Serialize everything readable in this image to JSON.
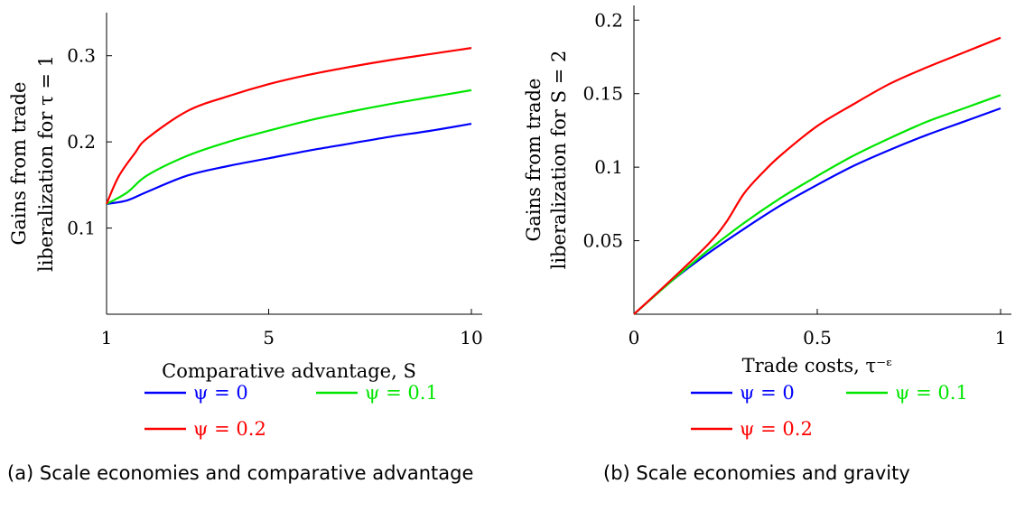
{
  "panels": [
    {
      "caption": "(a) Scale economies and comparative advantage",
      "chart_data": {
        "type": "line",
        "xlabel": "Comparative advantage, S",
        "ylabel_line1": "Gains from trade",
        "ylabel_line2": "liberalization for τ = 1",
        "xlim": [
          1,
          10
        ],
        "ylim": [
          0,
          0.35
        ],
        "xticks": [
          1,
          5,
          10
        ],
        "xtick_labels": [
          "1",
          "5",
          "10"
        ],
        "yticks": [
          0.1,
          0.2,
          0.3
        ],
        "ytick_labels": [
          "0.1",
          "0.2",
          "0.3"
        ],
        "grid": false,
        "legend_position": "bottom",
        "series": [
          {
            "name": "ψ = 0",
            "color": "#0000ff",
            "x": [
              1,
              1.5,
              2,
              3,
              4,
              5,
              6,
              7,
              8,
              9,
              10
            ],
            "y": [
              0.128,
              0.132,
              0.142,
              0.161,
              0.172,
              0.181,
              0.19,
              0.198,
              0.206,
              0.213,
              0.221
            ]
          },
          {
            "name": "ψ = 0.1",
            "color": "#00e600",
            "x": [
              1,
              1.5,
              2,
              3,
              4,
              5,
              6,
              7,
              8,
              9,
              10
            ],
            "y": [
              0.128,
              0.141,
              0.161,
              0.184,
              0.2,
              0.213,
              0.225,
              0.235,
              0.244,
              0.252,
              0.26
            ]
          },
          {
            "name": "ψ = 0.2",
            "color": "#ff0000",
            "x": [
              1,
              1.3,
              1.7,
              2,
              3,
              4,
              5,
              6,
              7,
              8,
              9,
              10
            ],
            "y": [
              0.128,
              0.16,
              0.187,
              0.204,
              0.236,
              0.253,
              0.267,
              0.278,
              0.287,
              0.295,
              0.302,
              0.309
            ]
          }
        ]
      }
    },
    {
      "caption": "(b) Scale economies and gravity",
      "chart_data": {
        "type": "line",
        "xlabel": "Trade costs, τ⁻ᵋ",
        "ylabel_line1": "Gains from trade",
        "ylabel_line2": "liberalization for S = 2",
        "xlim": [
          0,
          1
        ],
        "ylim": [
          0,
          0.21
        ],
        "xticks": [
          0,
          0.5,
          1
        ],
        "xtick_labels": [
          "0",
          "0.5",
          "1"
        ],
        "yticks": [
          0.05,
          0.1,
          0.15,
          0.2
        ],
        "ytick_labels": [
          "0.05",
          "0.1",
          "0.15",
          "0.2"
        ],
        "grid": false,
        "legend_position": "bottom",
        "series": [
          {
            "name": "ψ = 0",
            "color": "#0000ff",
            "x": [
              0,
              0.1,
              0.2,
              0.3,
              0.4,
              0.5,
              0.6,
              0.7,
              0.8,
              0.9,
              1
            ],
            "y": [
              0,
              0.022,
              0.041,
              0.058,
              0.074,
              0.088,
              0.101,
              0.112,
              0.122,
              0.131,
              0.14
            ]
          },
          {
            "name": "ψ = 0.1",
            "color": "#00e600",
            "x": [
              0,
              0.1,
              0.2,
              0.3,
              0.4,
              0.5,
              0.6,
              0.7,
              0.8,
              0.9,
              1
            ],
            "y": [
              0,
              0.022,
              0.043,
              0.062,
              0.079,
              0.094,
              0.108,
              0.12,
              0.131,
              0.14,
              0.149
            ]
          },
          {
            "name": "ψ = 0.2",
            "color": "#ff0000",
            "x": [
              0,
              0.1,
              0.2,
              0.25,
              0.3,
              0.35,
              0.4,
              0.5,
              0.6,
              0.7,
              0.8,
              0.9,
              1
            ],
            "y": [
              0,
              0.023,
              0.047,
              0.062,
              0.082,
              0.096,
              0.108,
              0.128,
              0.143,
              0.157,
              0.168,
              0.178,
              0.188
            ]
          }
        ]
      }
    }
  ]
}
